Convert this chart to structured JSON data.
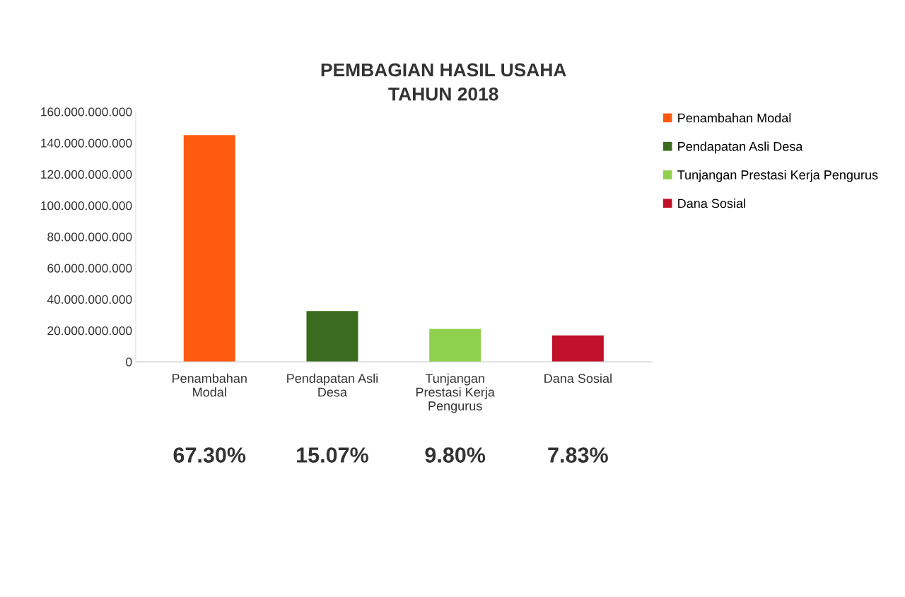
{
  "chart_data": {
    "type": "bar",
    "title": "PEMBAGIAN HASIL USAHA\nTAHUN 2018",
    "categories": [
      "Penambahan\nModal",
      "Pendapatan Asli\nDesa",
      "Tunjangan\nPrestasi Kerja\nPengurus",
      "Dana Sosial"
    ],
    "series": [
      {
        "name": "Penambahan Modal",
        "color": "#ff5a10",
        "values": [
          145000000000,
          null,
          null,
          null
        ]
      },
      {
        "name": "Pendapatan Asli Desa",
        "color": "#3a6b1e",
        "values": [
          null,
          32500000000,
          null,
          null
        ]
      },
      {
        "name": "Tunjangan Prestasi Kerja Pengurus",
        "color": "#8fd14f",
        "values": [
          null,
          null,
          21100000000,
          null
        ]
      },
      {
        "name": "Dana Sosial",
        "color": "#c0102a",
        "values": [
          null,
          null,
          null,
          16900000000
        ]
      }
    ],
    "stacked": true,
    "annotations": [
      "67.30%",
      "15.07%",
      "9.80%",
      "7.83%"
    ],
    "ylim": [
      0,
      160000000000
    ],
    "yticks": [
      0,
      {
        "value": 20000000000,
        "label": "20.000.000.000"
      },
      {
        "value": 40000000000,
        "label": "40.000.000.000"
      },
      {
        "value": 60000000000,
        "label": "60.000.000.000"
      },
      {
        "value": 80000000000,
        "label": "80.000.000.000"
      },
      {
        "value": 100000000000,
        "label": "100.000.000.000"
      },
      {
        "value": 120000000000,
        "label": "120.000.000.000"
      },
      {
        "value": 140000000000,
        "label": "140.000.000.000"
      },
      {
        "value": 160000000000,
        "label": "160.000.000.000"
      }
    ],
    "grid": false,
    "legend": "top right"
  }
}
